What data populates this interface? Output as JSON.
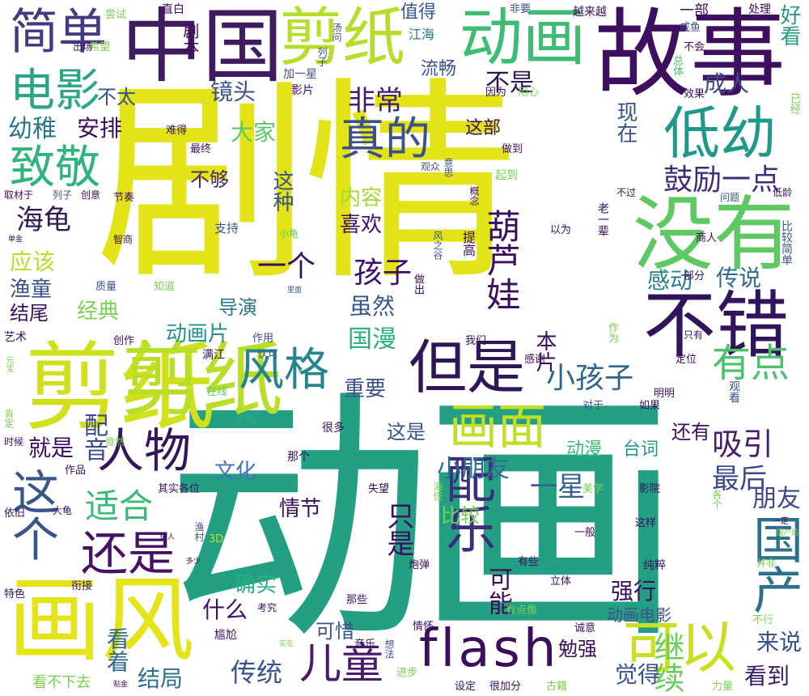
{
  "palette": {
    "deep_purple": "#440154",
    "indigo": "#3b528b",
    "teal": "#21918c",
    "green": "#5ec962",
    "yellow": "#fde725"
  },
  "words": {
    "w01": "剧情",
    "w02": "动画",
    "w03": "剪纸",
    "w04": "故事",
    "w05": "中国",
    "w06": "剪纸",
    "w07": "动画",
    "w08": "没有",
    "w09": "不错",
    "w10": "画风",
    "w11": "flash",
    "w12": "剪纸",
    "w13": "画面",
    "w14": "但是",
    "w15": "风格",
    "w16": "可以",
    "w17": "低幼",
    "w18": "真的",
    "w19": "电影",
    "w20": "致敬",
    "w21": "简单",
    "w22": "这个",
    "w23": "还是",
    "w24": "人物",
    "w25": "国产",
    "w26": "配乐",
    "w27": "葫芦娃",
    "w28": "有点",
    "w29": "儿童",
    "w30": "传统",
    "w31": "小孩子",
    "w32": "孩子",
    "w33": "吸引",
    "w34": "鼓励一点",
    "w35": "继续",
    "w36": "适合",
    "w37": "非常",
    "w38": "不是",
    "w39": "现在",
    "w40": "一星",
    "w41": "小朋友",
    "w42": "最后",
    "w43": "成人",
    "w44": "海龟",
    "w45": "应该",
    "w46": "镜头",
    "w47": "大家",
    "w48": "幼稚",
    "w49": "安排",
    "w50": "不太",
    "w51": "不够",
    "w52": "这种",
    "w53": "内容",
    "w54": "喜欢",
    "w55": "一个",
    "w56": "虽然",
    "w57": "国漫",
    "w58": "动画片",
    "w59": "经典",
    "w60": "导演",
    "w61": "感动",
    "w62": "传说",
    "w63": "配音",
    "w64": "看着",
    "w65": "什么",
    "w66": "结局",
    "w67": "确实",
    "w68": "强行",
    "w69": "觉得",
    "w70": "来说",
    "w71": "看到",
    "w72": "朋友",
    "w73": "重要",
    "w74": "文化",
    "w75": "就是",
    "w76": "这是",
    "w77": "还有",
    "w78": "动漫",
    "w79": "台词",
    "w80": "情节",
    "w81": "比较",
    "w82": "只是",
    "w83": "可能",
    "w84": "本片",
    "w85": "可惜",
    "w86": "勉强",
    "w87": "动画电影",
    "w88": "渔童",
    "w89": "结尾",
    "w90": "这部",
    "w91": "值得",
    "w92": "流畅",
    "w93": "剧本",
    "w94": "江海",
    "w95": "列子",
    "w96": "汤问",
    "w97": "加一星",
    "w98": "影片",
    "w99": "一部",
    "w100": "好看",
    "w101": "咸鱼",
    "w102": "不会",
    "w103": "总体",
    "w104": "效果",
    "w105": "处理",
    "w106": "已经",
    "w107": "越来越",
    "w108": "非要",
    "w109": "直白",
    "w110": "尝试",
    "w111": "希望",
    "w112": "出场",
    "w113": "难得",
    "w114": "最终",
    "w115": "起到",
    "w116": "做到",
    "w117": "概念",
    "w118": "观众",
    "w119": "意思",
    "w120": "取材于",
    "w121": "列子",
    "w122": "创意",
    "w123": "节奏",
    "w124": "智商",
    "w125": "支持",
    "w126": "小龟",
    "w127": "风之谷",
    "w128": "提高",
    "w129": "老一辈",
    "w130": "以为",
    "w131": "商人",
    "w132": "问题",
    "w133": "低龄",
    "w134": "比较简单",
    "w135": "不过",
    "w136": "单金",
    "w137": "质量",
    "w138": "知道",
    "w139": "里面",
    "w140": "做出",
    "w141": "部分",
    "w142": "只有",
    "w143": "艺术",
    "w144": "作用",
    "w145": "创作",
    "w146": "满江",
    "w147": "认可",
    "w148": "我们",
    "w149": "作为",
    "w150": "感谢",
    "w151": "定位",
    "w152": "在线",
    "w153": "元宝",
    "w154": "明明",
    "w155": "对于",
    "w156": "如果",
    "w157": "观看",
    "w158": "小孩",
    "w159": "肯定",
    "w160": "很多",
    "w161": "时候",
    "w162": "竟然",
    "w163": "作品",
    "w164": "那个",
    "w165": "其实各位",
    "w166": "失望",
    "w167": "影院",
    "w168": "美学",
    "w169": "各个",
    "w170": "大龟",
    "w171": "依旧",
    "w172": "海怪",
    "w173": "这样",
    "w174": "一定",
    "w175": "渔村",
    "w176": "3D",
    "w177": "一般",
    "w178": "做人",
    "w179": "多少",
    "w180": "国产的",
    "w181": "衔接",
    "w182": "有些",
    "w183": "炮弹",
    "w184": "纯粹",
    "w185": "并非",
    "w186": "立体",
    "w187": "特色",
    "w188": "那些",
    "w189": "考究",
    "w190": "情怀",
    "w191": "有点像",
    "w192": "诚意",
    "w193": "尴尬",
    "w194": "音乐",
    "w195": "想法",
    "w196": "实在",
    "w197": "不行",
    "w198": "看不下去",
    "w199": "贴金",
    "w200": "进步",
    "w201": "设定",
    "w202": "很加分",
    "w203": "古籍",
    "w204": "力量",
    "w205": "因为",
    "w206": "用心",
    "w207": "不能"
  }
}
